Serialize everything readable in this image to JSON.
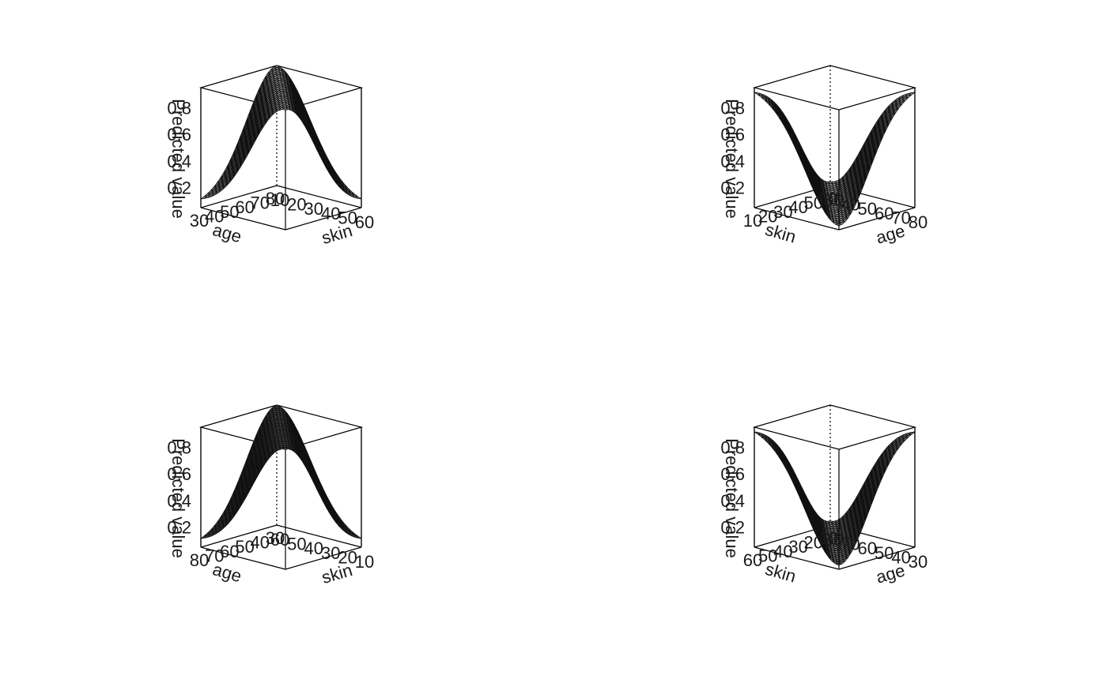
{
  "chart_data": [
    {
      "type": "surface",
      "position": "top-left",
      "zlabel": "Predicted value",
      "ztick_labels": [
        "0.2",
        "0.4",
        "0.6",
        "0.8"
      ],
      "zlim": [
        0.05,
        0.95
      ],
      "left_axis": {
        "label": "age",
        "ticks": [
          "30",
          "40",
          "50",
          "60",
          "70",
          "80"
        ],
        "range": [
          30,
          80
        ]
      },
      "right_axis": {
        "label": "skin",
        "ticks": [
          "10",
          "20",
          "30",
          "40",
          "50",
          "60"
        ],
        "range": [
          10,
          60
        ]
      },
      "shape": "ridge",
      "peak_value": 0.95,
      "corner_value": 0.08,
      "shade": "#bdbdbd"
    },
    {
      "type": "surface",
      "position": "top-right",
      "zlabel": "Predicted value",
      "ztick_labels": [
        "0.2",
        "0.4",
        "0.6",
        "0.8"
      ],
      "zlim": [
        0.05,
        0.95
      ],
      "left_axis": {
        "label": "skin",
        "ticks": [
          "10",
          "20",
          "30",
          "40",
          "50",
          "60"
        ],
        "range": [
          10,
          60
        ]
      },
      "right_axis": {
        "label": "age",
        "ticks": [
          "30",
          "40",
          "50",
          "60",
          "70",
          "80"
        ],
        "range": [
          30,
          80
        ]
      },
      "shape": "valley",
      "peak_value": 0.95,
      "corner_value": 0.08,
      "shade": "#c8c8c8"
    },
    {
      "type": "surface",
      "position": "bottom-left",
      "zlabel": "Predicted value",
      "ztick_labels": [
        "0.2",
        "0.4",
        "0.6",
        "0.8"
      ],
      "zlim": [
        0.05,
        0.95
      ],
      "left_axis": {
        "label": "age",
        "ticks": [
          "80",
          "70",
          "60",
          "50",
          "40",
          "30"
        ],
        "range": [
          80,
          30
        ]
      },
      "right_axis": {
        "label": "skin",
        "ticks": [
          "60",
          "50",
          "40",
          "30",
          "20",
          "10"
        ],
        "range": [
          60,
          10
        ]
      },
      "shape": "ridge",
      "peak_value": 0.95,
      "corner_value": 0.08,
      "shade": "#555555"
    },
    {
      "type": "surface",
      "position": "bottom-right",
      "zlabel": "Predicted value",
      "ztick_labels": [
        "0.2",
        "0.4",
        "0.6",
        "0.8"
      ],
      "zlim": [
        0.05,
        0.95
      ],
      "left_axis": {
        "label": "skin",
        "ticks": [
          "60",
          "50",
          "40",
          "30",
          "20",
          "10"
        ],
        "range": [
          60,
          10
        ]
      },
      "right_axis": {
        "label": "age",
        "ticks": [
          "80",
          "70",
          "60",
          "50",
          "40",
          "30"
        ],
        "range": [
          80,
          30
        ]
      },
      "shape": "valley",
      "peak_value": 0.95,
      "corner_value": 0.08,
      "shade": "#9a9a9a"
    }
  ]
}
